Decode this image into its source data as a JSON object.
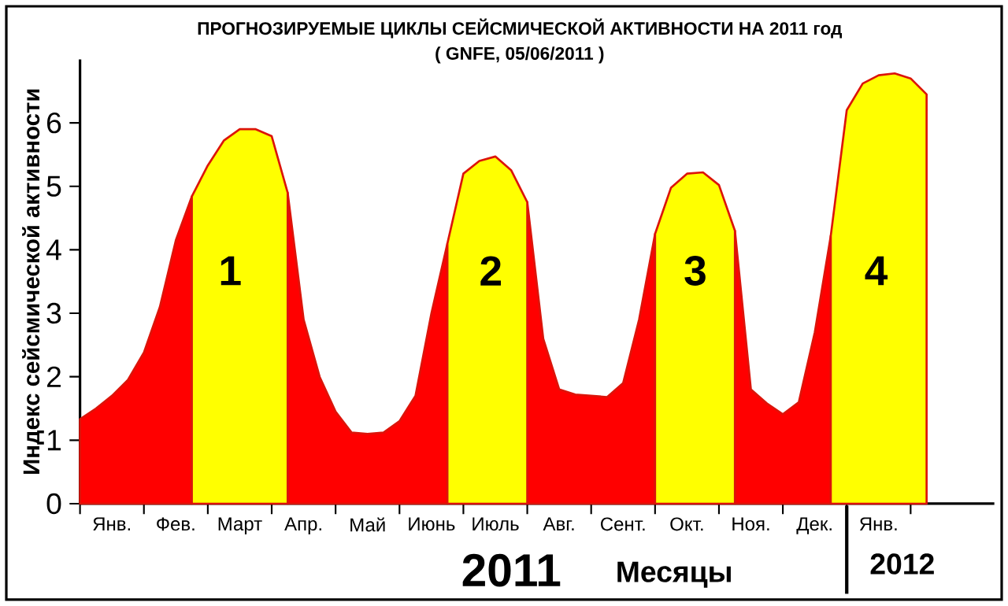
{
  "chart_data": {
    "type": "area",
    "title": "ПРОГНОЗИРУЕМЫЕ  ЦИКЛЫ  СЕЙСМИЧЕСКОЙ  АКТИВНОСТИ  НА  2011 год",
    "subtitle": "( GNFE, 05/06/2011 )",
    "xlabel": "Месяцы",
    "ylabel": "Индекс сейсмической активности",
    "categories": [
      null,
      null,
      "Янв.",
      null,
      null,
      null,
      "Фев.",
      null,
      null,
      null,
      "Март",
      null,
      null,
      null,
      "Апр.",
      null,
      null,
      null,
      "Май",
      null,
      null,
      null,
      "Июнь",
      null,
      null,
      null,
      "Июль",
      null,
      null,
      null,
      "Авг.",
      null,
      null,
      null,
      "Сент.",
      null,
      null,
      null,
      "Окт.",
      null,
      null,
      null,
      "Ноя.",
      null,
      null,
      null,
      "Дек.",
      null,
      null,
      null,
      "Янв.",
      null,
      null,
      null
    ],
    "series": [
      {
        "color": "#ff0000",
        "values": [
          1.33,
          1.5,
          1.7,
          1.95,
          2.38,
          3.1,
          4.15,
          4.84,
          null,
          null,
          null,
          null,
          null,
          4.9,
          2.9,
          2.0,
          1.45,
          1.12,
          1.1,
          1.12,
          1.3,
          1.7,
          3.0,
          4.1,
          null,
          null,
          null,
          null,
          4.75,
          2.6,
          1.8,
          1.72,
          1.7,
          1.68,
          1.9,
          2.9,
          4.25,
          null,
          null,
          null,
          null,
          4.3,
          1.8,
          1.58,
          1.41,
          1.6,
          2.7,
          4.22,
          null,
          null,
          null,
          null,
          null,
          null
        ]
      },
      {
        "color": "#ffff00",
        "values": [
          null,
          null,
          null,
          null,
          null,
          null,
          null,
          4.84,
          5.33,
          5.72,
          5.9,
          5.9,
          5.79,
          4.9,
          null,
          null,
          null,
          null,
          null,
          null,
          null,
          null,
          null,
          4.1,
          5.2,
          5.4,
          5.47,
          5.25,
          4.75,
          null,
          null,
          null,
          null,
          null,
          null,
          null,
          4.25,
          4.98,
          5.2,
          5.22,
          5.02,
          4.3,
          null,
          null,
          null,
          null,
          null,
          4.22,
          6.2,
          6.62,
          6.75,
          6.78,
          6.7,
          6.45
        ]
      }
    ],
    "ylim": [
      0,
      7
    ],
    "yticks": [
      0,
      1,
      2,
      3,
      4,
      5,
      6
    ],
    "annotations": [
      "1",
      "2",
      "3",
      "4",
      "2011",
      "2012"
    ]
  }
}
